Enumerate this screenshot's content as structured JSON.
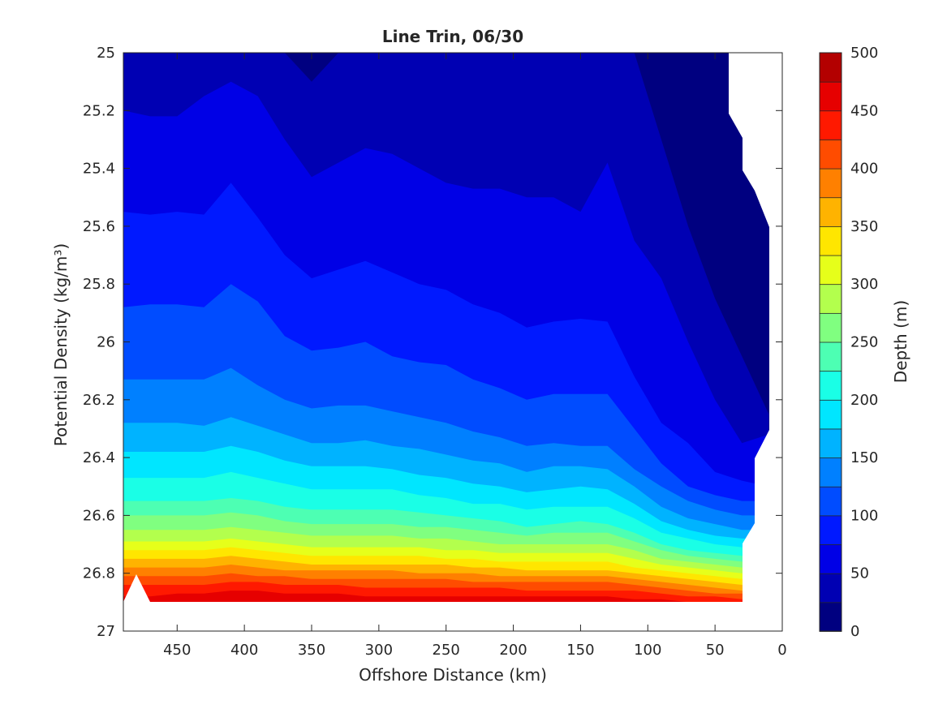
{
  "chart_data": {
    "type": "contour",
    "title": "Line Trin, 06/30",
    "xlabel": "Offshore Distance (km)",
    "ylabel": "Potential Density (kg/m³)",
    "colorbar_label": "Depth (m)",
    "x_reversed": true,
    "xlim": [
      0,
      490
    ],
    "ylim": [
      25,
      27
    ],
    "y_reversed": true,
    "x_ticks": [
      "450",
      "400",
      "350",
      "300",
      "250",
      "200",
      "150",
      "100",
      "50",
      "0"
    ],
    "x_tick_values": [
      450,
      400,
      350,
      300,
      250,
      200,
      150,
      100,
      50,
      0
    ],
    "y_ticks": [
      "25",
      "25.2",
      "25.4",
      "25.6",
      "25.8",
      "26",
      "26.2",
      "26.4",
      "26.6",
      "26.8",
      "27"
    ],
    "y_tick_values": [
      25,
      25.2,
      25.4,
      25.6,
      25.8,
      26,
      26.2,
      26.4,
      26.6,
      26.8,
      27
    ],
    "colorbar_ticks": [
      "0",
      "50",
      "100",
      "150",
      "200",
      "250",
      "300",
      "350",
      "400",
      "450",
      "500"
    ],
    "colorbar_tick_values": [
      0,
      50,
      100,
      150,
      200,
      250,
      300,
      350,
      400,
      450,
      500
    ],
    "levels": [
      0,
      25,
      50,
      75,
      100,
      125,
      150,
      175,
      200,
      225,
      250,
      275,
      300,
      325,
      350,
      375,
      400,
      425,
      450,
      475,
      500
    ],
    "colormap": [
      "#000080",
      "#0000b3",
      "#0000e6",
      "#0019ff",
      "#004cff",
      "#0080ff",
      "#00b3ff",
      "#00e6ff",
      "#1affe6",
      "#4dffb3",
      "#80ff80",
      "#b3ff4d",
      "#e6ff1a",
      "#ffe600",
      "#ffb300",
      "#ff8000",
      "#ff4c00",
      "#ff1900",
      "#e60000",
      "#b30000"
    ],
    "x": [
      490,
      470,
      450,
      430,
      410,
      390,
      370,
      350,
      330,
      310,
      290,
      270,
      250,
      230,
      210,
      190,
      170,
      150,
      130,
      110,
      90,
      70,
      50,
      30,
      10
    ],
    "contours": [
      {
        "level": 25,
        "y": [
          25.0,
          25.0,
          25.0,
          25.0,
          25.0,
          25.0,
          25.0,
          25.0,
          25.0,
          25.0,
          25.0,
          25.0,
          25.0,
          25.0,
          25.0,
          25.0,
          25.0,
          25.0,
          25.0,
          25.0,
          25.0,
          25.0,
          25.0,
          25.0,
          25.0
        ]
      },
      {
        "level": 50,
        "y": [
          25.0,
          25.0,
          25.0,
          25.0,
          25.0,
          25.0,
          25.0,
          25.1,
          25.0,
          25.0,
          25.0,
          25.0,
          25.0,
          25.0,
          25.0,
          25.0,
          25.0,
          25.0,
          25.0,
          25.0,
          25.3,
          25.6,
          25.85,
          26.05,
          26.25
        ]
      },
      {
        "level": 75,
        "y": [
          25.2,
          25.22,
          25.22,
          25.15,
          25.1,
          25.15,
          25.3,
          25.43,
          25.38,
          25.33,
          25.35,
          25.4,
          25.45,
          25.47,
          25.47,
          25.5,
          25.5,
          25.55,
          25.38,
          25.65,
          25.78,
          26.0,
          26.2,
          26.35,
          26.32
        ]
      },
      {
        "level": 100,
        "y": [
          25.55,
          25.56,
          25.55,
          25.56,
          25.45,
          25.57,
          25.7,
          25.78,
          25.75,
          25.72,
          25.76,
          25.8,
          25.82,
          25.87,
          25.9,
          25.95,
          25.93,
          25.92,
          25.93,
          26.12,
          26.28,
          26.35,
          26.45,
          26.48,
          26.5
        ]
      },
      {
        "level": 125,
        "y": [
          25.88,
          25.87,
          25.87,
          25.88,
          25.8,
          25.86,
          25.98,
          26.03,
          26.02,
          26.0,
          26.05,
          26.07,
          26.08,
          26.13,
          26.16,
          26.2,
          26.18,
          26.18,
          26.18,
          26.3,
          26.42,
          26.5,
          26.53,
          26.55,
          26.55
        ]
      },
      {
        "level": 150,
        "y": [
          26.13,
          26.13,
          26.13,
          26.13,
          26.09,
          26.15,
          26.2,
          26.23,
          26.22,
          26.22,
          26.24,
          26.26,
          26.28,
          26.31,
          26.33,
          26.36,
          26.35,
          26.36,
          26.36,
          26.44,
          26.5,
          26.55,
          26.58,
          26.6,
          26.6
        ]
      },
      {
        "level": 175,
        "y": [
          26.28,
          26.28,
          26.28,
          26.29,
          26.26,
          26.29,
          26.32,
          26.35,
          26.35,
          26.34,
          26.36,
          26.37,
          26.39,
          26.41,
          26.42,
          26.45,
          26.43,
          26.43,
          26.44,
          26.5,
          26.57,
          26.61,
          26.63,
          26.65,
          26.65
        ]
      },
      {
        "level": 200,
        "y": [
          26.38,
          26.38,
          26.38,
          26.38,
          26.36,
          26.38,
          26.41,
          26.43,
          26.43,
          26.43,
          26.44,
          26.46,
          26.47,
          26.49,
          26.5,
          26.52,
          26.51,
          26.5,
          26.51,
          26.56,
          26.62,
          26.65,
          26.67,
          26.68,
          26.68
        ]
      },
      {
        "level": 225,
        "y": [
          26.47,
          26.47,
          26.47,
          26.47,
          26.45,
          26.47,
          26.49,
          26.51,
          26.51,
          26.51,
          26.51,
          26.53,
          26.54,
          26.56,
          26.56,
          26.58,
          26.57,
          26.57,
          26.57,
          26.61,
          26.66,
          26.68,
          26.7,
          26.71,
          26.71
        ]
      },
      {
        "level": 250,
        "y": [
          26.55,
          26.55,
          26.55,
          26.55,
          26.54,
          26.55,
          26.57,
          26.58,
          26.58,
          26.58,
          26.58,
          26.59,
          26.6,
          26.61,
          26.62,
          26.64,
          26.63,
          26.62,
          26.63,
          26.66,
          26.7,
          26.72,
          26.73,
          26.74,
          26.74
        ]
      },
      {
        "level": 275,
        "y": [
          26.6,
          26.6,
          26.6,
          26.6,
          26.59,
          26.6,
          26.62,
          26.63,
          26.63,
          26.63,
          26.63,
          26.64,
          26.64,
          26.65,
          26.66,
          26.67,
          26.66,
          26.66,
          26.66,
          26.69,
          26.72,
          26.74,
          26.75,
          26.76,
          26.76
        ]
      },
      {
        "level": 300,
        "y": [
          26.65,
          26.65,
          26.65,
          26.65,
          26.64,
          26.65,
          26.66,
          26.67,
          26.67,
          26.67,
          26.67,
          26.68,
          26.68,
          26.69,
          26.7,
          26.7,
          26.7,
          26.7,
          26.7,
          26.72,
          26.75,
          26.76,
          26.77,
          26.78,
          26.78
        ]
      },
      {
        "level": 325,
        "y": [
          26.69,
          26.69,
          26.69,
          26.69,
          26.68,
          26.69,
          26.7,
          26.71,
          26.71,
          26.71,
          26.71,
          26.71,
          26.72,
          26.72,
          26.73,
          26.73,
          26.73,
          26.73,
          26.73,
          26.75,
          26.77,
          26.78,
          26.79,
          26.8,
          26.8
        ]
      },
      {
        "level": 350,
        "y": [
          26.72,
          26.72,
          26.72,
          26.72,
          26.71,
          26.72,
          26.73,
          26.74,
          26.74,
          26.74,
          26.74,
          26.74,
          26.75,
          26.75,
          26.76,
          26.76,
          26.76,
          26.76,
          26.76,
          26.78,
          26.79,
          26.8,
          26.81,
          26.82,
          26.82
        ]
      },
      {
        "level": 375,
        "y": [
          26.75,
          26.75,
          26.75,
          26.75,
          26.74,
          26.75,
          26.76,
          26.77,
          26.77,
          26.77,
          26.77,
          26.77,
          26.77,
          26.78,
          26.78,
          26.79,
          26.79,
          26.79,
          26.79,
          26.8,
          26.81,
          26.82,
          26.83,
          26.84,
          26.84
        ]
      },
      {
        "level": 400,
        "y": [
          26.78,
          26.78,
          26.78,
          26.78,
          26.77,
          26.78,
          26.79,
          26.79,
          26.79,
          26.79,
          26.79,
          26.8,
          26.8,
          26.8,
          26.81,
          26.81,
          26.81,
          26.81,
          26.81,
          26.82,
          26.83,
          26.84,
          26.85,
          26.86,
          26.86
        ]
      },
      {
        "level": 425,
        "y": [
          26.81,
          26.81,
          26.81,
          26.81,
          26.8,
          26.81,
          26.81,
          26.82,
          26.82,
          26.82,
          26.82,
          26.82,
          26.82,
          26.83,
          26.83,
          26.83,
          26.83,
          26.83,
          26.83,
          26.84,
          26.85,
          26.86,
          26.87,
          26.87,
          26.87
        ]
      },
      {
        "level": 450,
        "y": [
          26.84,
          26.84,
          26.84,
          26.84,
          26.83,
          26.83,
          26.84,
          26.84,
          26.84,
          26.85,
          26.85,
          26.85,
          26.85,
          26.85,
          26.85,
          26.86,
          26.86,
          26.86,
          26.86,
          26.86,
          26.87,
          26.88,
          26.88,
          26.89,
          26.89
        ]
      },
      {
        "level": 475,
        "y": [
          26.88,
          26.88,
          26.87,
          26.87,
          26.86,
          26.86,
          26.87,
          26.87,
          26.87,
          26.88,
          26.88,
          26.88,
          26.88,
          26.88,
          26.88,
          26.88,
          26.88,
          26.88,
          26.88,
          26.89,
          26.89,
          26.9,
          26.9,
          26.9,
          26.9
        ]
      }
    ],
    "bottom_boundary": 26.9,
    "grid": false,
    "legend": "none"
  }
}
